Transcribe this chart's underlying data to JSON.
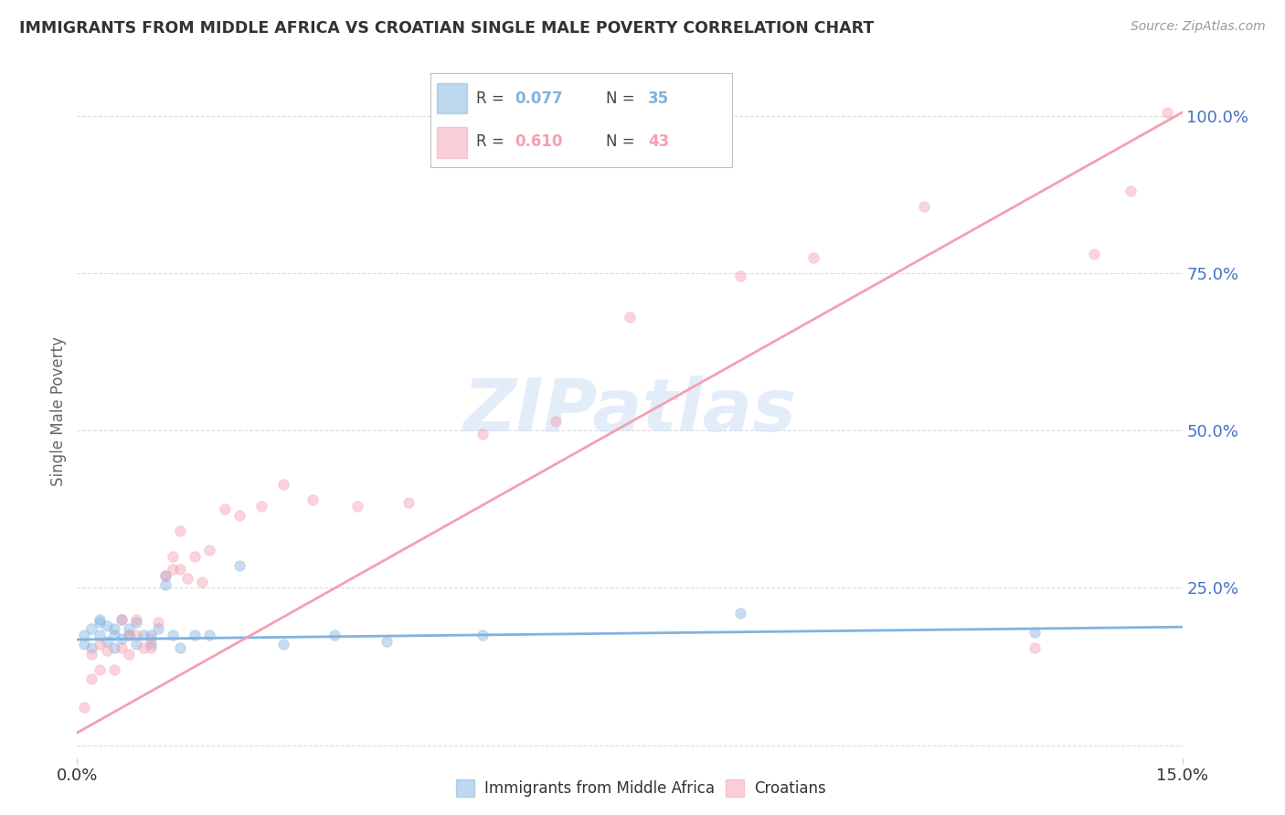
{
  "title": "IMMIGRANTS FROM MIDDLE AFRICA VS CROATIAN SINGLE MALE POVERTY CORRELATION CHART",
  "source": "Source: ZipAtlas.com",
  "ylabel": "Single Male Poverty",
  "watermark": "ZIPatlas",
  "legend_entries": [
    {
      "label": "Immigrants from Middle Africa",
      "R": "0.077",
      "N": "35",
      "color": "#7fb3e0"
    },
    {
      "label": "Croatians",
      "R": "0.610",
      "N": "43",
      "color": "#f4a0b0"
    }
  ],
  "blue_scatter_x": [
    0.001,
    0.001,
    0.002,
    0.002,
    0.003,
    0.003,
    0.003,
    0.004,
    0.004,
    0.005,
    0.005,
    0.005,
    0.006,
    0.006,
    0.007,
    0.007,
    0.008,
    0.008,
    0.009,
    0.01,
    0.01,
    0.011,
    0.012,
    0.012,
    0.013,
    0.014,
    0.016,
    0.018,
    0.022,
    0.028,
    0.035,
    0.042,
    0.055,
    0.09,
    0.13
  ],
  "blue_scatter_y": [
    0.175,
    0.16,
    0.185,
    0.155,
    0.195,
    0.175,
    0.2,
    0.165,
    0.19,
    0.175,
    0.185,
    0.155,
    0.2,
    0.17,
    0.185,
    0.175,
    0.16,
    0.195,
    0.175,
    0.16,
    0.175,
    0.185,
    0.27,
    0.255,
    0.175,
    0.155,
    0.175,
    0.175,
    0.285,
    0.16,
    0.175,
    0.165,
    0.175,
    0.21,
    0.18
  ],
  "pink_scatter_x": [
    0.001,
    0.002,
    0.002,
    0.003,
    0.003,
    0.004,
    0.005,
    0.006,
    0.006,
    0.007,
    0.007,
    0.008,
    0.008,
    0.009,
    0.01,
    0.01,
    0.011,
    0.012,
    0.013,
    0.013,
    0.014,
    0.014,
    0.015,
    0.016,
    0.017,
    0.018,
    0.02,
    0.022,
    0.025,
    0.028,
    0.032,
    0.038,
    0.045,
    0.055,
    0.065,
    0.075,
    0.09,
    0.1,
    0.115,
    0.13,
    0.138,
    0.143,
    0.148
  ],
  "pink_scatter_y": [
    0.06,
    0.105,
    0.145,
    0.12,
    0.16,
    0.15,
    0.12,
    0.155,
    0.2,
    0.175,
    0.145,
    0.175,
    0.2,
    0.155,
    0.155,
    0.17,
    0.195,
    0.27,
    0.28,
    0.3,
    0.34,
    0.28,
    0.265,
    0.3,
    0.26,
    0.31,
    0.375,
    0.365,
    0.38,
    0.415,
    0.39,
    0.38,
    0.385,
    0.495,
    0.515,
    0.68,
    0.745,
    0.775,
    0.855,
    0.155,
    0.78,
    0.88,
    1.005
  ],
  "blue_line_x": [
    0.0,
    0.15
  ],
  "blue_line_y": [
    0.168,
    0.188
  ],
  "pink_line_x": [
    0.0,
    0.15
  ],
  "pink_line_y": [
    0.02,
    1.005
  ],
  "xlim": [
    0.0,
    0.15
  ],
  "ylim": [
    -0.02,
    1.08
  ],
  "background_color": "#ffffff",
  "scatter_size": 70,
  "scatter_alpha": 0.45,
  "title_color": "#333333",
  "source_color": "#999999",
  "right_tick_color": "#4472c4",
  "ylabel_color": "#666666",
  "grid_color": "#dddddd",
  "ytick_vals": [
    0.0,
    0.25,
    0.5,
    0.75,
    1.0
  ],
  "ytick_labels": [
    "",
    "25.0%",
    "50.0%",
    "75.0%",
    "100.0%"
  ]
}
